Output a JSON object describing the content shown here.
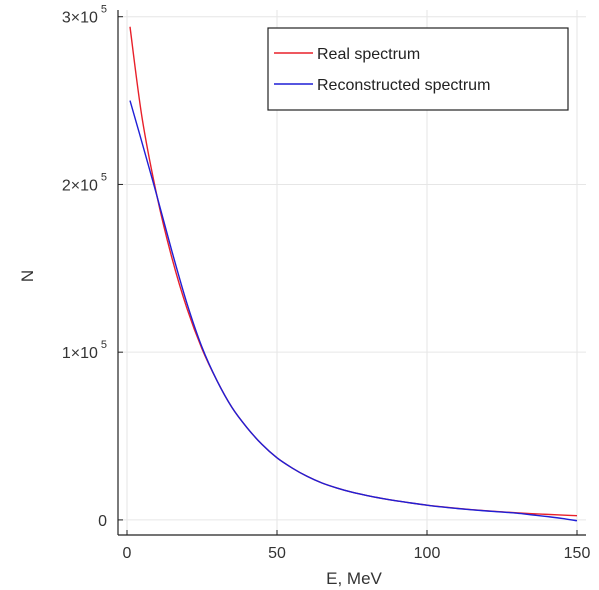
{
  "chart_data": {
    "type": "line",
    "xlabel": "E, MeV",
    "ylabel": "N",
    "xlim": [
      -3,
      153
    ],
    "ylim": [
      -9000,
      304000
    ],
    "grid": true,
    "legend_position": "top-right",
    "x_ticks": [
      {
        "value": 0,
        "label": "0"
      },
      {
        "value": 50,
        "label": "50"
      },
      {
        "value": 100,
        "label": "100"
      },
      {
        "value": 150,
        "label": "150"
      }
    ],
    "y_ticks": [
      {
        "value": 0,
        "label": "0",
        "mantissa": "0",
        "base": "",
        "exp": ""
      },
      {
        "value": 100000,
        "label": "1×10^5",
        "mantissa": "1×",
        "base": "10",
        "exp": "5"
      },
      {
        "value": 200000,
        "label": "2×10^5",
        "mantissa": "2×",
        "base": "10",
        "exp": "5"
      },
      {
        "value": 300000,
        "label": "3×10^5",
        "mantissa": "3×",
        "base": "10",
        "exp": "5"
      }
    ],
    "series": [
      {
        "name": "Real spectrum",
        "color": "#e8202a",
        "x": [
          1,
          5,
          10,
          15,
          20,
          25,
          30,
          35,
          40,
          45,
          50,
          55,
          60,
          65,
          70,
          75,
          80,
          85,
          90,
          95,
          100,
          105,
          110,
          115,
          120,
          125,
          130,
          135,
          140,
          145,
          150
        ],
        "y": [
          294000,
          240000,
          193000,
          156000,
          126000,
          102000,
          83000,
          67000,
          55000,
          45000,
          37000,
          31000,
          26000,
          22000,
          19000,
          16500,
          14500,
          12800,
          11300,
          10000,
          8800,
          7800,
          6900,
          6100,
          5400,
          4800,
          4200,
          3700,
          3300,
          2900,
          2500
        ]
      },
      {
        "name": "Reconstructed spectrum",
        "color": "#1f1fd6",
        "x": [
          1,
          5,
          10,
          15,
          20,
          25,
          30,
          35,
          40,
          45,
          50,
          55,
          60,
          65,
          70,
          75,
          80,
          85,
          90,
          95,
          100,
          105,
          110,
          115,
          120,
          125,
          130,
          135,
          140,
          145,
          150
        ],
        "y": [
          250000,
          225000,
          193000,
          160000,
          129000,
          103000,
          83000,
          67000,
          55000,
          45000,
          37000,
          31000,
          26000,
          22000,
          19000,
          16500,
          14500,
          12800,
          11300,
          10000,
          8800,
          7700,
          6800,
          6000,
          5300,
          4700,
          4000,
          3000,
          2000,
          900,
          -500
        ]
      }
    ]
  }
}
